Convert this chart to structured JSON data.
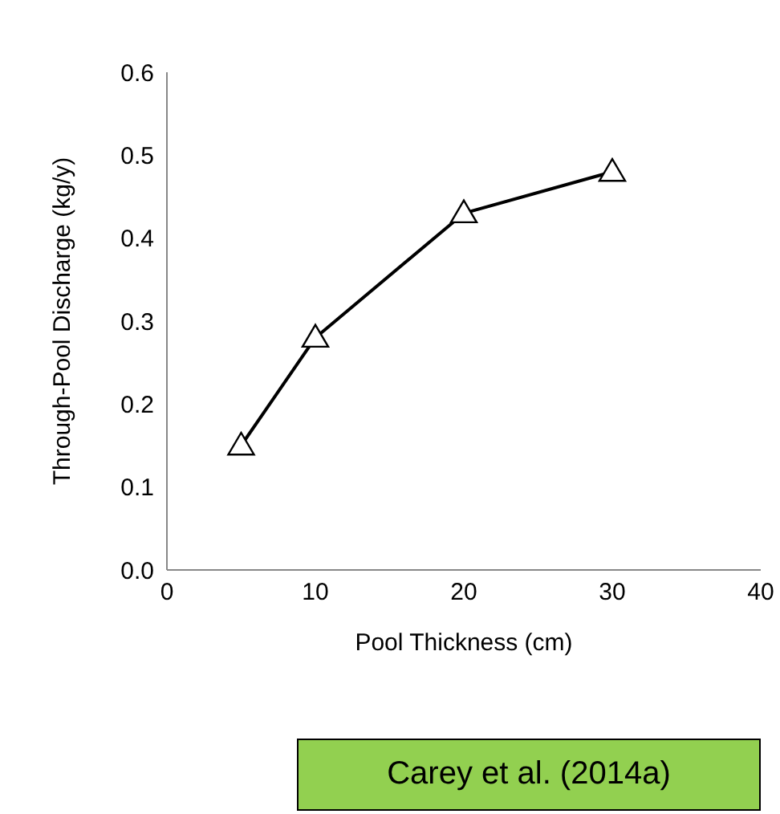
{
  "chart_data": {
    "type": "line",
    "xlabel": "Pool Thickness (cm)",
    "ylabel": "Through-Pool Discharge (kg/y)",
    "x": [
      5,
      10,
      20,
      30
    ],
    "series": [
      {
        "color": "#000000",
        "values": [
          0.15,
          0.28,
          0.43,
          0.48
        ]
      }
    ],
    "xlim": [
      0,
      40
    ],
    "xticks": [
      0,
      10,
      20,
      30,
      40
    ],
    "ylim": [
      0,
      0.6
    ],
    "yticks": [
      {
        "value": 0,
        "label": "0.0"
      },
      {
        "value": 0.1,
        "label": "0.1"
      },
      {
        "value": 0.2,
        "label": "0.2"
      },
      {
        "value": 0.3,
        "label": "0.3"
      },
      {
        "value": 0.4,
        "label": "0.4"
      },
      {
        "value": 0.5,
        "label": "0.5"
      },
      {
        "value": 0.6,
        "label": "0.6"
      }
    ],
    "grid": false,
    "marker": "triangle",
    "line_style": "solid",
    "annotations": [
      "Carey et al. (2014a)"
    ]
  }
}
